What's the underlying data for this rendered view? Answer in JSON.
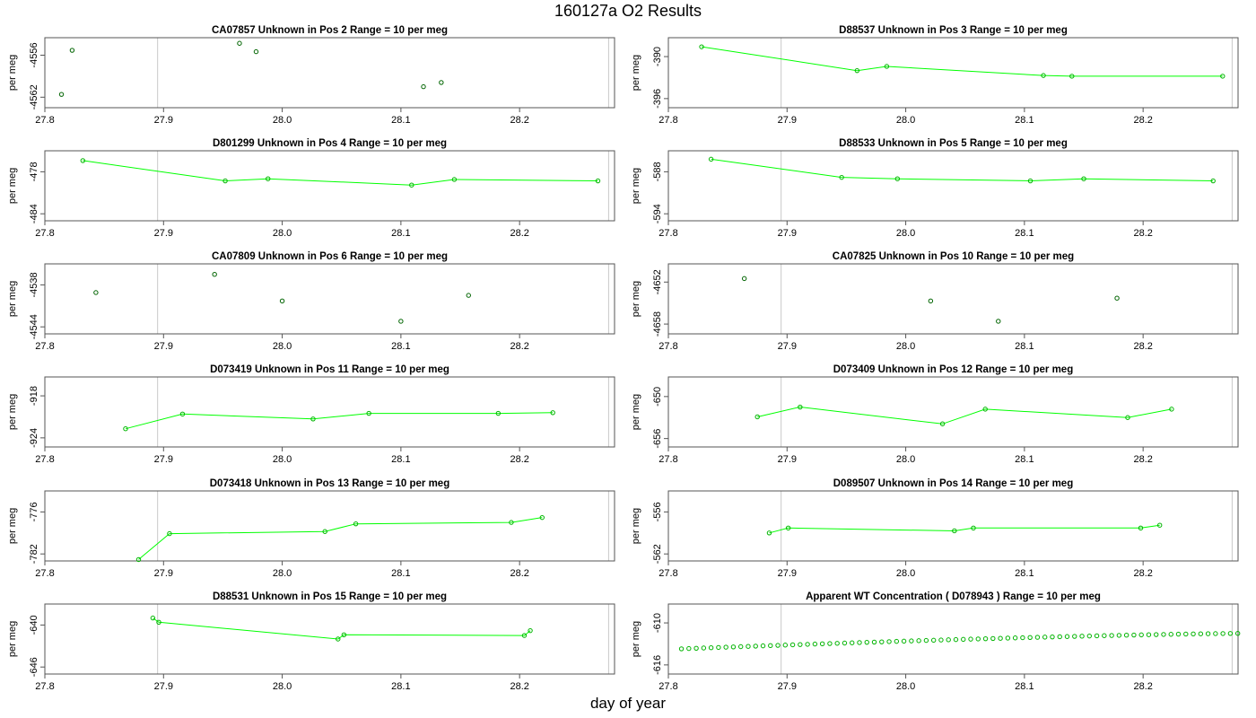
{
  "figure": {
    "title": "160127a  O2 Results",
    "xlabel": "day of year"
  },
  "chart_data": [
    {
      "type": "scatter",
      "title": "CA07857    Unknown in Pos 2          Range = 10 per meg",
      "ylabel": "per meg",
      "connected": false,
      "xlim": [
        27.8,
        28.28
      ],
      "ylim": [
        -4563.5,
        -4553.5
      ],
      "xticks": [
        27.8,
        27.9,
        28.0,
        28.1,
        28.2
      ],
      "yticks": [
        -4562,
        -4556
      ],
      "vlines": [
        27.895,
        28.275
      ],
      "x": [
        27.814,
        27.823,
        27.964,
        27.978,
        28.119,
        28.134
      ],
      "y": [
        -4561.6,
        -4555.3,
        -4554.3,
        -4555.5,
        -4560.5,
        -4559.9
      ],
      "point_color": "#006400"
    },
    {
      "type": "line",
      "title": "D88537    Unknown in Pos 3          Range = 10 per meg",
      "ylabel": "per meg",
      "connected": true,
      "xlim": [
        27.8,
        28.28
      ],
      "ylim": [
        -397.3,
        -387.3
      ],
      "xticks": [
        27.8,
        27.9,
        28.0,
        28.1,
        28.2
      ],
      "yticks": [
        -396,
        -390
      ],
      "vlines": [
        27.895,
        28.275
      ],
      "x": [
        27.828,
        27.959,
        27.984,
        28.116,
        28.14,
        28.267
      ],
      "y": [
        -388.6,
        -392.0,
        -391.4,
        -392.7,
        -392.8,
        -392.8
      ],
      "point_color": "#00b400"
    },
    {
      "type": "line",
      "title": "D801299    Unknown in Pos 4          Range = 10 per meg",
      "ylabel": "per meg",
      "connected": true,
      "xlim": [
        27.8,
        28.28
      ],
      "ylim": [
        -485.0,
        -475.0
      ],
      "xticks": [
        27.8,
        27.9,
        28.0,
        28.1,
        28.2
      ],
      "yticks": [
        -484,
        -478
      ],
      "vlines": [
        27.895,
        28.275
      ],
      "x": [
        27.832,
        27.952,
        27.988,
        28.109,
        28.145,
        28.266
      ],
      "y": [
        -476.4,
        -479.3,
        -479.0,
        -479.9,
        -479.1,
        -479.3
      ],
      "point_color": "#00b400"
    },
    {
      "type": "line",
      "title": "D88533    Unknown in Pos 5          Range = 10 per meg",
      "ylabel": "per meg",
      "connected": true,
      "xlim": [
        27.8,
        28.28
      ],
      "ylim": [
        -595.0,
        -585.0
      ],
      "xticks": [
        27.8,
        27.9,
        28.0,
        28.1,
        28.2
      ],
      "yticks": [
        -594,
        -588
      ],
      "vlines": [
        27.895,
        28.275
      ],
      "x": [
        27.836,
        27.946,
        27.993,
        28.105,
        28.15,
        28.259
      ],
      "y": [
        -586.2,
        -588.8,
        -589.0,
        -589.3,
        -589.0,
        -589.3
      ],
      "point_color": "#00b400"
    },
    {
      "type": "scatter",
      "title": "CA07809    Unknown in Pos 6          Range = 10 per meg",
      "ylabel": "per meg",
      "connected": false,
      "xlim": [
        27.8,
        28.28
      ],
      "ylim": [
        -4545.0,
        -4535.0
      ],
      "xticks": [
        27.8,
        27.9,
        28.0,
        28.1,
        28.2
      ],
      "yticks": [
        -4544,
        -4538
      ],
      "vlines": [
        27.895,
        28.275
      ],
      "x": [
        27.843,
        27.943,
        28.0,
        28.1,
        28.157
      ],
      "y": [
        -4539.1,
        -4536.5,
        -4540.3,
        -4543.2,
        -4539.5
      ],
      "point_color": "#006400"
    },
    {
      "type": "scatter",
      "title": "CA07825    Unknown in Pos 10          Range = 10 per meg",
      "ylabel": "per meg",
      "connected": false,
      "xlim": [
        27.8,
        28.28
      ],
      "ylim": [
        -4659.4,
        -4649.4
      ],
      "xticks": [
        27.8,
        27.9,
        28.0,
        28.1,
        28.2
      ],
      "yticks": [
        -4658,
        -4652
      ],
      "vlines": [
        27.895,
        28.275
      ],
      "x": [
        27.864,
        28.021,
        28.078,
        28.178
      ],
      "y": [
        -4651.5,
        -4654.7,
        -4657.6,
        -4654.3
      ],
      "point_color": "#006400"
    },
    {
      "type": "line",
      "title": "D073419    Unknown in Pos 11          Range = 10 per meg",
      "ylabel": "per meg",
      "connected": true,
      "xlim": [
        27.8,
        28.28
      ],
      "ylim": [
        -925.3,
        -915.3
      ],
      "xticks": [
        27.8,
        27.9,
        28.0,
        28.1,
        28.2
      ],
      "yticks": [
        -924,
        -918
      ],
      "vlines": [
        27.895,
        28.275
      ],
      "x": [
        27.868,
        27.916,
        28.026,
        28.073,
        28.182,
        28.228
      ],
      "y": [
        -922.7,
        -920.6,
        -921.3,
        -920.5,
        -920.5,
        -920.4
      ],
      "point_color": "#00b400"
    },
    {
      "type": "line",
      "title": "D073409    Unknown in Pos 12          Range = 10 per meg",
      "ylabel": "per meg",
      "connected": true,
      "xlim": [
        27.8,
        28.28
      ],
      "ylim": [
        -657.2,
        -647.2
      ],
      "xticks": [
        27.8,
        27.9,
        28.0,
        28.1,
        28.2
      ],
      "yticks": [
        -656,
        -650
      ],
      "vlines": [
        27.895,
        28.275
      ],
      "x": [
        27.875,
        27.911,
        28.031,
        28.067,
        28.187,
        28.224
      ],
      "y": [
        -652.9,
        -651.5,
        -653.9,
        -651.8,
        -653.0,
        -651.8
      ],
      "point_color": "#00b400"
    },
    {
      "type": "line",
      "title": "D073418    Unknown in Pos 13          Range = 10 per meg",
      "ylabel": "per meg",
      "connected": true,
      "xlim": [
        27.8,
        28.28
      ],
      "ylim": [
        -783.0,
        -773.0
      ],
      "xticks": [
        27.8,
        27.9,
        28.0,
        28.1,
        28.2
      ],
      "yticks": [
        -782,
        -776
      ],
      "vlines": [
        27.895,
        28.275
      ],
      "x": [
        27.879,
        27.905,
        28.036,
        28.062,
        28.193,
        28.219
      ],
      "y": [
        -782.8,
        -779.1,
        -778.8,
        -777.7,
        -777.5,
        -776.8
      ],
      "point_color": "#00b400"
    },
    {
      "type": "line",
      "title": "D089507    Unknown in Pos 14          Range = 10 per meg",
      "ylabel": "per meg",
      "connected": true,
      "xlim": [
        27.8,
        28.28
      ],
      "ylim": [
        -563.0,
        -553.0
      ],
      "xticks": [
        27.8,
        27.9,
        28.0,
        28.1,
        28.2
      ],
      "yticks": [
        -562,
        -556
      ],
      "vlines": [
        27.895,
        28.275
      ],
      "x": [
        27.885,
        27.901,
        28.041,
        28.057,
        28.198,
        28.214
      ],
      "y": [
        -559.0,
        -558.3,
        -558.7,
        -558.3,
        -558.3,
        -557.9
      ],
      "point_color": "#00b400"
    },
    {
      "type": "line",
      "title": "D88531    Unknown in Pos 15          Range = 10 per meg",
      "ylabel": "per meg",
      "connected": true,
      "xlim": [
        27.8,
        28.28
      ],
      "ylim": [
        -647.0,
        -637.0
      ],
      "xticks": [
        27.8,
        27.9,
        28.0,
        28.1,
        28.2
      ],
      "yticks": [
        -646,
        -640
      ],
      "vlines": [
        27.895,
        28.275
      ],
      "x": [
        27.891,
        27.896,
        28.047,
        28.052,
        28.204,
        28.209
      ],
      "y": [
        -639.0,
        -639.6,
        -642.0,
        -641.4,
        -641.5,
        -640.8
      ],
      "point_color": "#00b400"
    },
    {
      "type": "line",
      "title": "Apparent WT Concentration ( D078943 )          Range = 10 per meg",
      "ylabel": "per meg",
      "connected": false,
      "xlim": [
        27.8,
        28.28
      ],
      "ylim": [
        -617.3,
        -607.3
      ],
      "xticks": [
        27.8,
        27.9,
        28.0,
        28.1,
        28.2
      ],
      "yticks": [
        -616,
        -610
      ],
      "vlines": [
        27.895,
        28.275
      ],
      "x_start": 27.811,
      "x_step": 0.00625,
      "n": 76,
      "y_start": -613.7,
      "y_end": -611.5,
      "point_color": "#00b400"
    }
  ]
}
